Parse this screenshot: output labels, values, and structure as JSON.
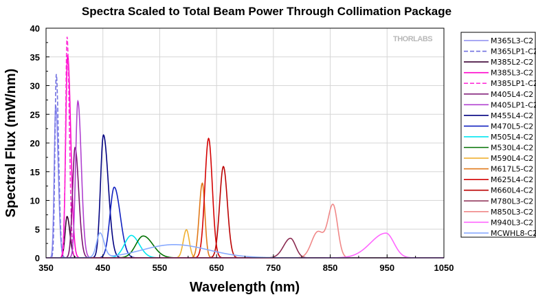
{
  "chart_data": {
    "type": "line",
    "title": "Spectra Scaled to Total Beam Power Through Collimation Package",
    "xlabel": "Wavelength (nm)",
    "ylabel": "Spectral Flux (mW/nm)",
    "xlim": [
      350,
      1050
    ],
    "ylim": [
      0,
      40
    ],
    "xticks": [
      350,
      450,
      550,
      650,
      750,
      850,
      950,
      1050
    ],
    "yticks": [
      0,
      5,
      10,
      15,
      20,
      25,
      30,
      35,
      40
    ],
    "grid": true,
    "legend_position": "right",
    "watermark": "THORLABS",
    "series": [
      {
        "name": "M365L3-C2",
        "color": "#8c8cf0",
        "dash": false,
        "components": [
          {
            "center": 367,
            "peak": 26.5,
            "sigma_left": 2.6,
            "sigma_right": 4.4
          }
        ]
      },
      {
        "name": "M365LP1-C2",
        "color": "#7070e0",
        "dash": true,
        "components": [
          {
            "center": 368,
            "peak": 32.0,
            "sigma_left": 2.4,
            "sigma_right": 4.0
          }
        ]
      },
      {
        "name": "M385L2-C2",
        "color": "#3a0033",
        "dash": false,
        "components": [
          {
            "center": 387,
            "peak": 7.2,
            "sigma_left": 3.5,
            "sigma_right": 5.0
          }
        ]
      },
      {
        "name": "M385L3-C2",
        "color": "#ff00cc",
        "dash": false,
        "components": [
          {
            "center": 388,
            "peak": 35.3,
            "sigma_left": 3.4,
            "sigma_right": 5.5
          }
        ]
      },
      {
        "name": "M385LP1-C2",
        "color": "#ff30d8",
        "dash": true,
        "components": [
          {
            "center": 387,
            "peak": 38.5,
            "sigma_left": 2.6,
            "sigma_right": 4.0
          }
        ]
      },
      {
        "name": "M405L4-C2",
        "color": "#7a1070",
        "dash": false,
        "components": [
          {
            "center": 401,
            "peak": 19.2,
            "sigma_left": 4.4,
            "sigma_right": 6.5
          }
        ]
      },
      {
        "name": "M405LP1-C2",
        "color": "#b040d0",
        "dash": false,
        "components": [
          {
            "center": 406,
            "peak": 27.3,
            "sigma_left": 4.0,
            "sigma_right": 6.0
          }
        ]
      },
      {
        "name": "M455L4-C2",
        "color": "#000080",
        "dash": false,
        "components": [
          {
            "center": 451,
            "peak": 21.4,
            "sigma_left": 5.2,
            "sigma_right": 8.5
          }
        ]
      },
      {
        "name": "M470L5-C2",
        "color": "#1020c0",
        "dash": false,
        "components": [
          {
            "center": 470,
            "peak": 12.3,
            "sigma_left": 7.5,
            "sigma_right": 10.5
          }
        ]
      },
      {
        "name": "M505L4-C2",
        "color": "#00e5f0",
        "dash": false,
        "components": [
          {
            "center": 500,
            "peak": 3.9,
            "sigma_left": 12,
            "sigma_right": 14
          }
        ]
      },
      {
        "name": "M530L4-C2",
        "color": "#007000",
        "dash": false,
        "components": [
          {
            "center": 521,
            "peak": 3.8,
            "sigma_left": 13,
            "sigma_right": 17
          }
        ]
      },
      {
        "name": "M590L4-C2",
        "color": "#f0b030",
        "dash": false,
        "components": [
          {
            "center": 597,
            "peak": 4.9,
            "sigma_left": 5.5,
            "sigma_right": 5.0
          }
        ]
      },
      {
        "name": "M617L5-C2",
        "color": "#e07818",
        "dash": false,
        "components": [
          {
            "center": 625,
            "peak": 13.0,
            "sigma_left": 5.5,
            "sigma_right": 4.5
          }
        ]
      },
      {
        "name": "M625L4-C2",
        "color": "#d40000",
        "dash": false,
        "components": [
          {
            "center": 636,
            "peak": 20.8,
            "sigma_left": 6.5,
            "sigma_right": 6.5
          }
        ]
      },
      {
        "name": "M660L4-C2",
        "color": "#bb0000",
        "dash": false,
        "components": [
          {
            "center": 662,
            "peak": 15.9,
            "sigma_left": 6.5,
            "sigma_right": 7.0
          }
        ]
      },
      {
        "name": "M780L3-C2",
        "color": "#8a2a50",
        "dash": false,
        "components": [
          {
            "center": 780,
            "peak": 3.4,
            "sigma_left": 12,
            "sigma_right": 9
          }
        ]
      },
      {
        "name": "M850L3-C2",
        "color": "#f08888",
        "dash": false,
        "components": [
          {
            "center": 855,
            "peak": 9.1,
            "sigma_left": 9,
            "sigma_right": 8
          },
          {
            "center": 828,
            "peak": 4.5,
            "sigma_left": 11,
            "sigma_right": 11
          }
        ]
      },
      {
        "name": "M940L3-C2",
        "color": "#ff66ff",
        "dash": false,
        "components": [
          {
            "center": 948,
            "peak": 4.3,
            "sigma_left": 27,
            "sigma_right": 14
          }
        ]
      },
      {
        "name": "MCWHL8-C2",
        "color": "#88aaff",
        "dash": false,
        "components": [
          {
            "center": 445,
            "peak": 4.2,
            "sigma_left": 6,
            "sigma_right": 7
          },
          {
            "center": 575,
            "peak": 2.3,
            "sigma_left": 55,
            "sigma_right": 60
          }
        ]
      }
    ]
  }
}
